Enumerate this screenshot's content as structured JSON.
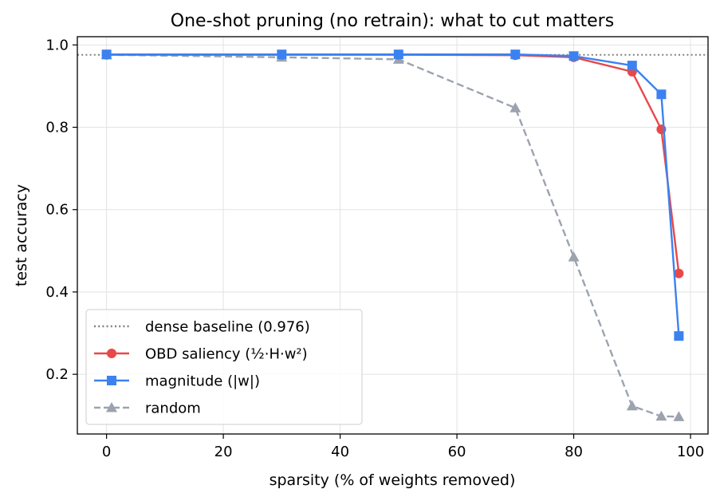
{
  "chart_data": {
    "type": "line",
    "title": "One-shot pruning (no retrain): what to cut matters",
    "xlabel": "sparsity (% of weights removed)",
    "ylabel": "test accuracy",
    "xlim": [
      -5,
      103
    ],
    "ylim": [
      0.055,
      1.02
    ],
    "xticks": [
      0,
      20,
      40,
      60,
      80,
      100
    ],
    "yticks": [
      0.2,
      0.4,
      0.6,
      0.8,
      1.0
    ],
    "xtick_labels": [
      "0",
      "20",
      "40",
      "60",
      "80",
      "100"
    ],
    "ytick_labels": [
      "0.2",
      "0.4",
      "0.6",
      "0.8",
      "1.0"
    ],
    "grid": true,
    "legend_position": "lower-left",
    "baseline": {
      "name": "dense baseline (0.976)",
      "value": 0.976,
      "color": "#808080",
      "style": "dotted"
    },
    "x": [
      0,
      30,
      50,
      70,
      80,
      90,
      95,
      98
    ],
    "series": [
      {
        "name": "OBD saliency (½·H·w²)",
        "values": [
          0.976,
          0.976,
          0.976,
          0.975,
          0.97,
          0.935,
          0.795,
          0.445
        ],
        "color": "#e8484a",
        "marker": "circle",
        "style": "solid"
      },
      {
        "name": "magnitude (|w|)",
        "values": [
          0.977,
          0.977,
          0.977,
          0.977,
          0.973,
          0.95,
          0.88,
          0.293
        ],
        "color": "#3b82f0",
        "marker": "square",
        "style": "solid"
      },
      {
        "name": "random",
        "values": [
          0.976,
          0.97,
          0.965,
          0.847,
          0.485,
          0.123,
          0.098,
          0.097
        ],
        "color": "#9ca3af",
        "marker": "triangle",
        "style": "dashed"
      }
    ]
  }
}
